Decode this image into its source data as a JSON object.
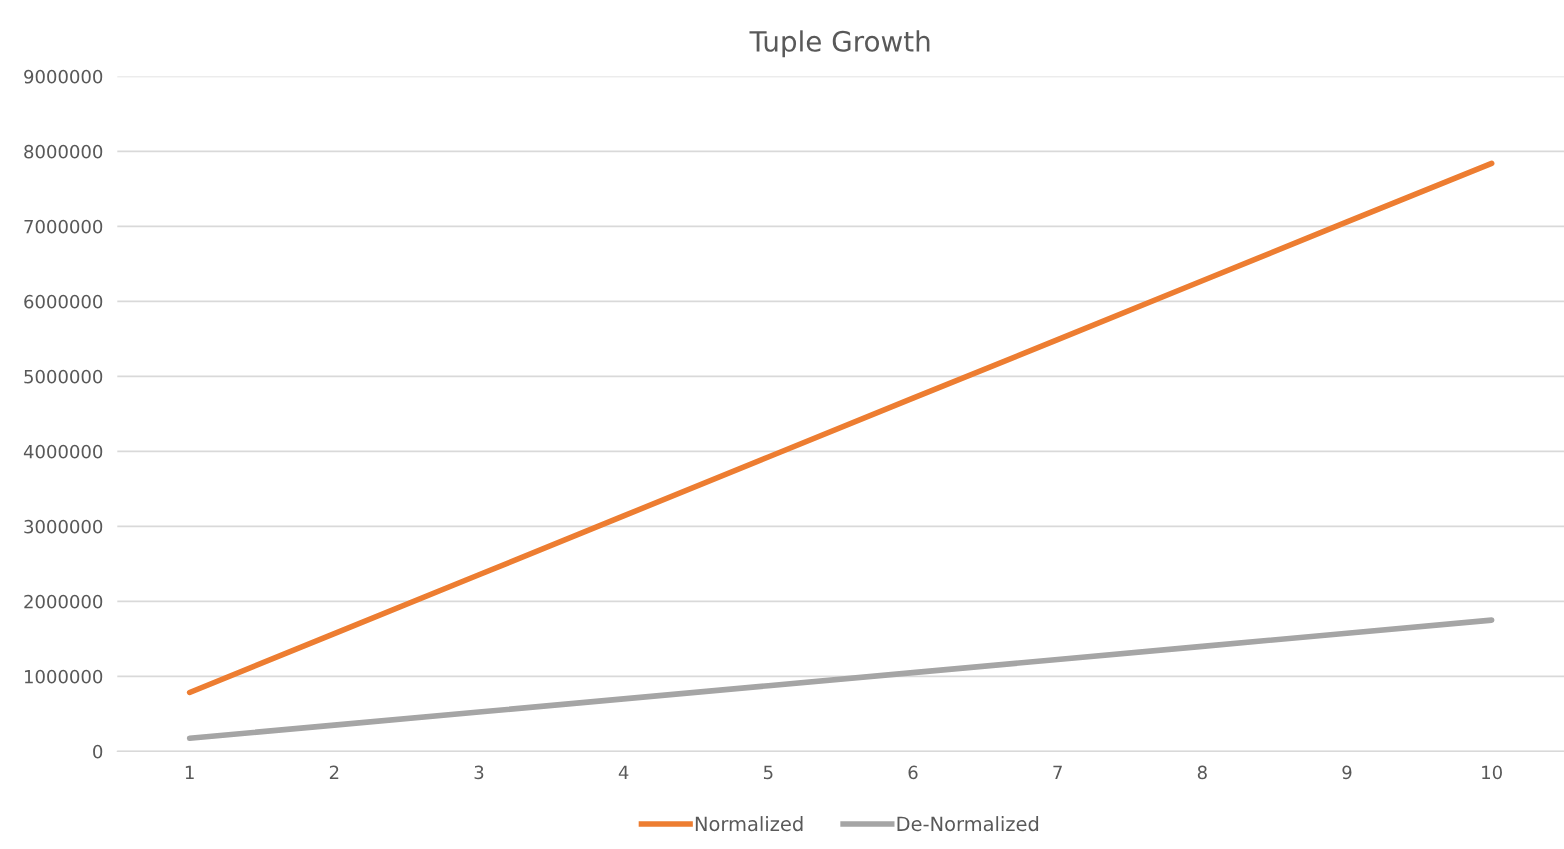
{
  "chart_data": {
    "type": "line",
    "title": "Tuple Growth",
    "categories": [
      "1",
      "2",
      "3",
      "4",
      "5",
      "6",
      "7",
      "8",
      "9",
      "10"
    ],
    "series": [
      {
        "name": "Normalized",
        "color": "#ed7d31",
        "values": [
          785000,
          1570000,
          2355000,
          3140000,
          3925000,
          4710000,
          5490000,
          6275000,
          7060000,
          7840000
        ]
      },
      {
        "name": "De-Normalized",
        "color": "#a5a5a5",
        "values": [
          175000,
          350000,
          525000,
          700000,
          875000,
          1050000,
          1225000,
          1400000,
          1575000,
          1750000
        ]
      }
    ],
    "ylim": [
      0,
      9000000
    ],
    "yticks": [
      0,
      1000000,
      2000000,
      3000000,
      4000000,
      5000000,
      6000000,
      7000000,
      8000000,
      9000000
    ],
    "grid": "y",
    "legend": "bottom",
    "marker": "none",
    "line_style": "solid"
  }
}
